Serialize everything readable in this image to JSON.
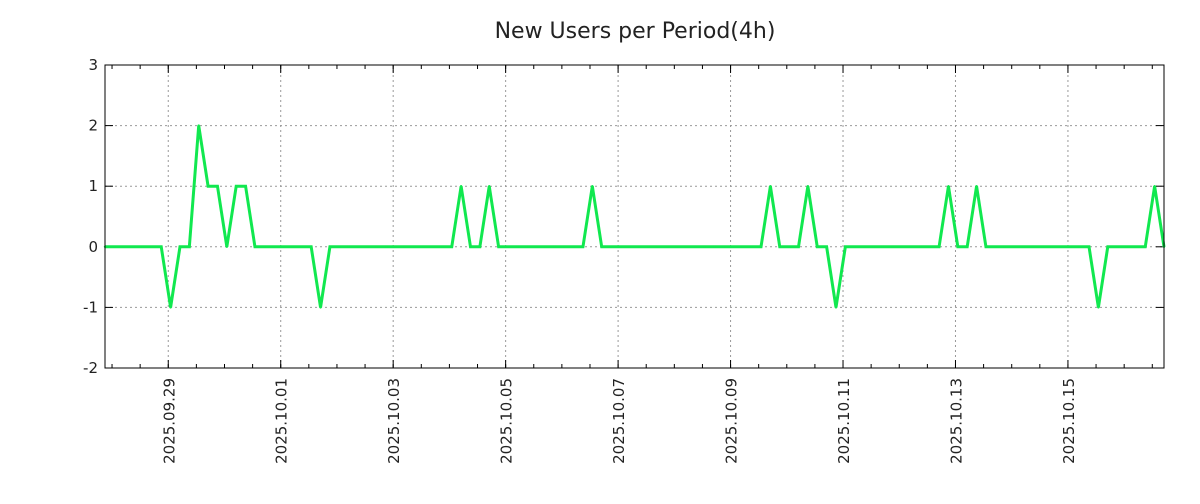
{
  "chart_data": {
    "type": "line",
    "title": "New Users per Period(4h)",
    "xlabel": "",
    "ylabel": "",
    "ylim": [
      -2,
      3
    ],
    "yticks": [
      "-2",
      "-1",
      "0",
      "1",
      "2",
      "3"
    ],
    "grid": true,
    "x_start": "2025-09-27 21:00",
    "step_hours": 4,
    "xtick_labels": [
      "2025.09.29",
      "2025.10.01",
      "2025.10.03",
      "2025.10.05",
      "2025.10.07",
      "2025.10.09",
      "2025.10.11",
      "2025.10.13",
      "2025.10.15"
    ],
    "xtick_hours_from_start": [
      27,
      75,
      123,
      171,
      219,
      267,
      315,
      363,
      411
    ],
    "minor_tick_hours": 12,
    "series": [
      {
        "name": "New Users",
        "color": "#11e84f",
        "values": [
          0,
          0,
          0,
          0,
          0,
          0,
          0,
          -1,
          0,
          0,
          2,
          1,
          1,
          0,
          1,
          1,
          0,
          0,
          0,
          0,
          0,
          0,
          0,
          -1,
          0,
          0,
          0,
          0,
          0,
          0,
          0,
          0,
          0,
          0,
          0,
          0,
          0,
          0,
          1,
          0,
          0,
          1,
          0,
          0,
          0,
          0,
          0,
          0,
          0,
          0,
          0,
          0,
          1,
          0,
          0,
          0,
          0,
          0,
          0,
          0,
          0,
          0,
          0,
          0,
          0,
          0,
          0,
          0,
          0,
          0,
          0,
          1,
          0,
          0,
          0,
          1,
          0,
          0,
          -1,
          0,
          0,
          0,
          0,
          0,
          0,
          0,
          0,
          0,
          0,
          0,
          1,
          0,
          0,
          1,
          0,
          0,
          0,
          0,
          0,
          0,
          0,
          0,
          0,
          0,
          0,
          0,
          -1,
          0,
          0,
          0,
          0,
          0,
          1,
          0
        ]
      }
    ]
  }
}
